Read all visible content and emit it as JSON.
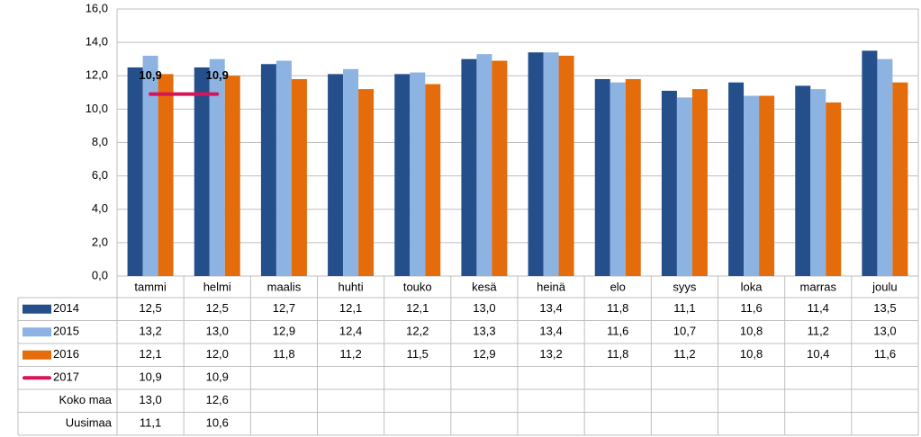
{
  "chart_data": {
    "type": "bar",
    "categories": [
      "tammi",
      "helmi",
      "maalis",
      "huhti",
      "touko",
      "kesä",
      "heinä",
      "elo",
      "syys",
      "loka",
      "marras",
      "joulu"
    ],
    "series": [
      {
        "name": "2014",
        "type": "bar",
        "color": "#254f8a",
        "values": [
          12.5,
          12.5,
          12.7,
          12.1,
          12.1,
          13.0,
          13.4,
          11.8,
          11.1,
          11.6,
          11.4,
          13.5
        ],
        "value_labels": [
          "12,5",
          "12,5",
          "12,7",
          "12,1",
          "12,1",
          "13,0",
          "13,4",
          "11,8",
          "11,1",
          "11,6",
          "11,4",
          "13,5"
        ]
      },
      {
        "name": "2015",
        "type": "bar",
        "color": "#8db3e2",
        "values": [
          13.2,
          13.0,
          12.9,
          12.4,
          12.2,
          13.3,
          13.4,
          11.6,
          10.7,
          10.8,
          11.2,
          13.0
        ],
        "value_labels": [
          "13,2",
          "13,0",
          "12,9",
          "12,4",
          "12,2",
          "13,3",
          "13,4",
          "11,6",
          "10,7",
          "10,8",
          "11,2",
          "13,0"
        ]
      },
      {
        "name": "2016",
        "type": "bar",
        "color": "#e46c0a",
        "values": [
          12.1,
          12.0,
          11.8,
          11.2,
          11.5,
          12.9,
          13.2,
          11.8,
          11.2,
          10.8,
          10.4,
          11.6
        ],
        "value_labels": [
          "12,1",
          "12,0",
          "11,8",
          "11,2",
          "11,5",
          "12,9",
          "13,2",
          "11,8",
          "11,2",
          "10,8",
          "10,4",
          "11,6"
        ]
      },
      {
        "name": "2017",
        "type": "line",
        "color": "#d6145a",
        "values": [
          10.9,
          10.9,
          null,
          null,
          null,
          null,
          null,
          null,
          null,
          null,
          null,
          null
        ],
        "value_labels": [
          "10,9",
          "10,9",
          null,
          null,
          null,
          null,
          null,
          null,
          null,
          null,
          null,
          null
        ]
      },
      {
        "name": "Koko maa",
        "type": "table",
        "values": [
          13.0,
          12.6,
          null,
          null,
          null,
          null,
          null,
          null,
          null,
          null,
          null,
          null
        ],
        "value_labels": [
          "13,0",
          "12,6",
          null,
          null,
          null,
          null,
          null,
          null,
          null,
          null,
          null,
          null
        ]
      },
      {
        "name": "Uusimaa",
        "type": "table",
        "values": [
          11.1,
          10.6,
          null,
          null,
          null,
          null,
          null,
          null,
          null,
          null,
          null,
          null
        ],
        "value_labels": [
          "11,1",
          "10,6",
          null,
          null,
          null,
          null,
          null,
          null,
          null,
          null,
          null,
          null
        ]
      }
    ],
    "ylim": [
      0,
      16
    ],
    "yticks": [
      {
        "value": 0,
        "label": "0,0"
      },
      {
        "value": 2,
        "label": "2,0"
      },
      {
        "value": 4,
        "label": "4,0"
      },
      {
        "value": 6,
        "label": "6,0"
      },
      {
        "value": 8,
        "label": "8,0"
      },
      {
        "value": 10,
        "label": "10,0"
      },
      {
        "value": 12,
        "label": "12,0"
      },
      {
        "value": 14,
        "label": "14,0"
      },
      {
        "value": 16,
        "label": "16,0"
      }
    ],
    "grid": true
  }
}
